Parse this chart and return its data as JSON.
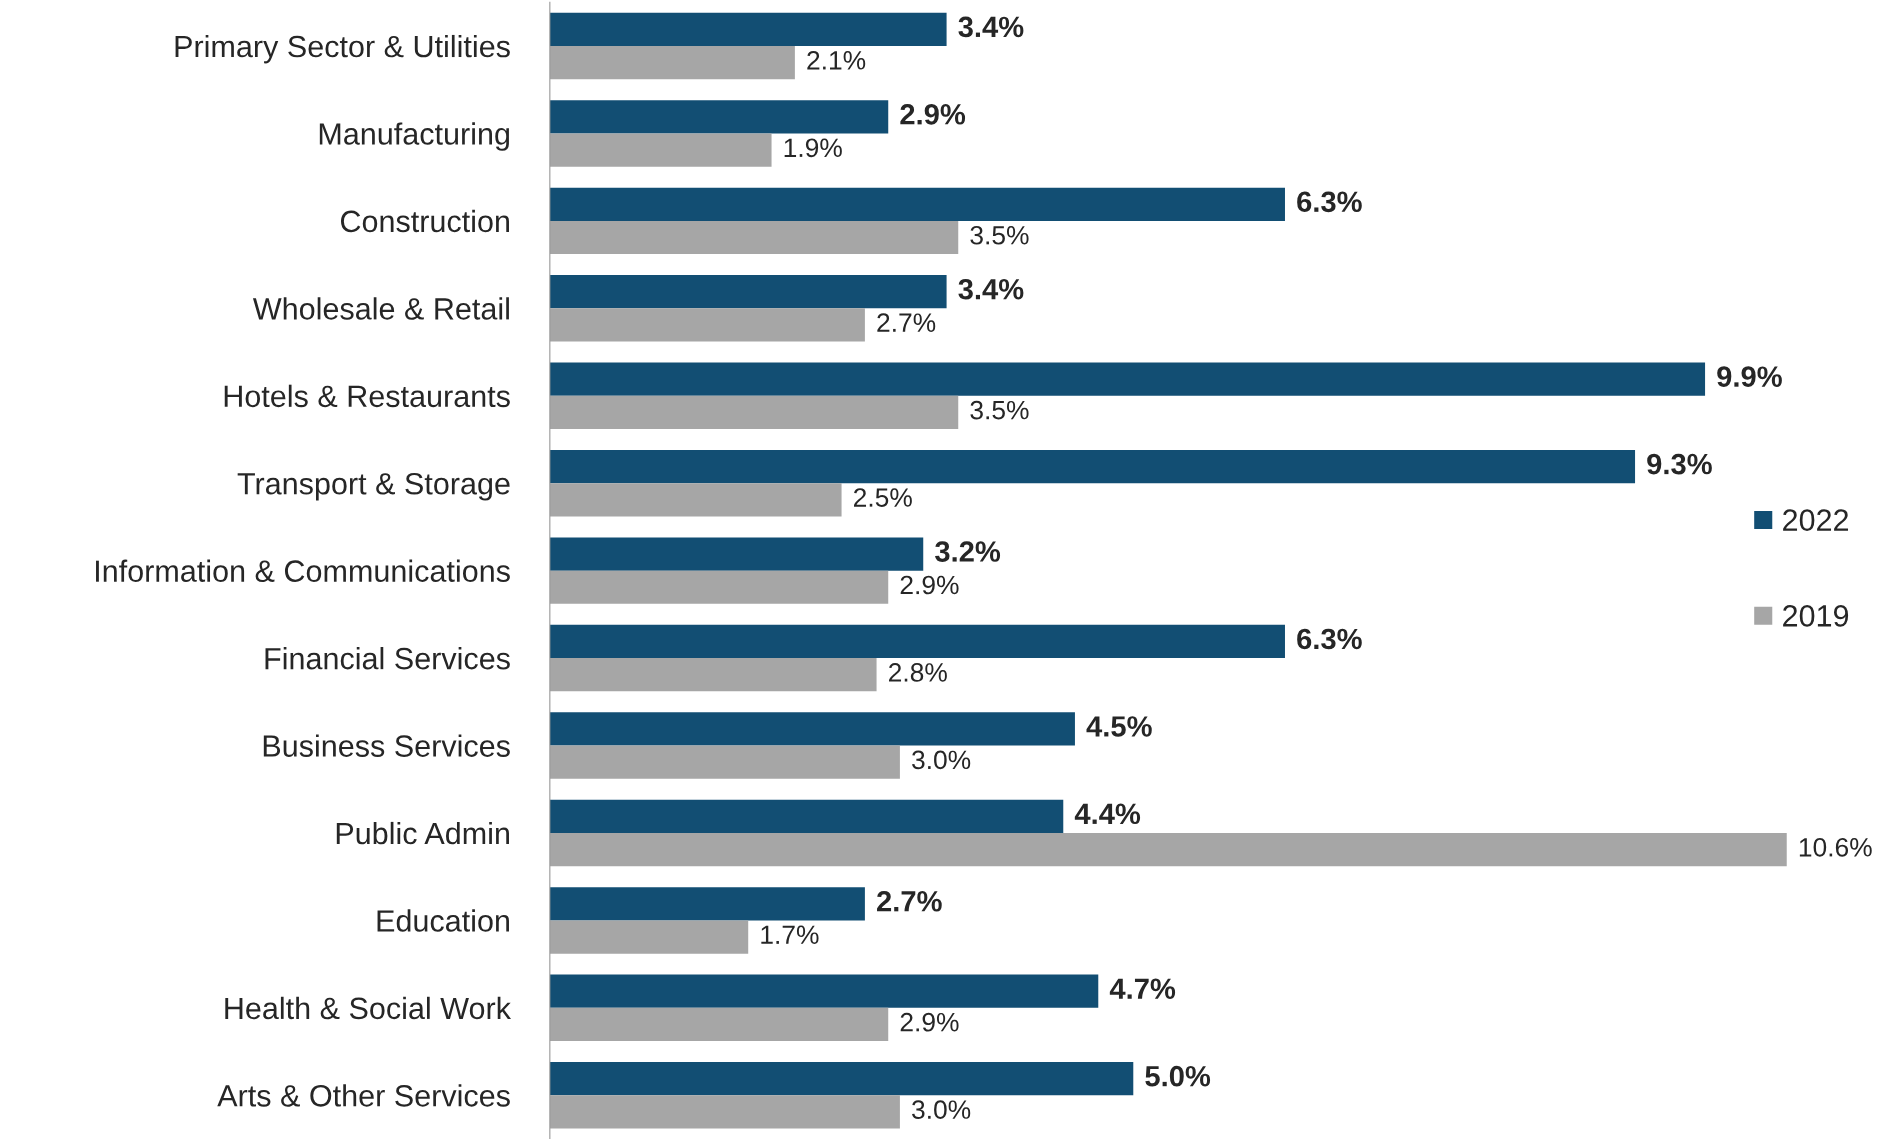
{
  "chart_data": {
    "type": "bar",
    "orientation": "horizontal",
    "relative": false,
    "categories": [
      "Primary Sector & Utilities",
      "Manufacturing",
      "Construction",
      "Wholesale & Retail",
      "Hotels & Restaurants",
      "Transport & Storage",
      "Information & Communications",
      "Financial Services",
      "Business Services",
      "Public Admin",
      "Education",
      "Health & Social Work",
      "Arts & Other Services"
    ],
    "series": [
      {
        "name": "2022",
        "color": "#124e73",
        "values": [
          3.4,
          2.9,
          6.3,
          3.4,
          9.9,
          9.3,
          3.2,
          6.3,
          4.5,
          4.4,
          2.7,
          4.7,
          5.0
        ],
        "value_labels": [
          "3.4%",
          "2.9%",
          "6.3%",
          "3.4%",
          "9.9%",
          "9.3%",
          "3.2%",
          "6.3%",
          "4.5%",
          "4.4%",
          "2.7%",
          "4.7%",
          "5.0%"
        ]
      },
      {
        "name": "2019",
        "color": "#a6a6a6",
        "values": [
          2.1,
          1.9,
          3.5,
          2.7,
          3.5,
          2.5,
          2.9,
          2.8,
          3.0,
          10.6,
          1.7,
          2.9,
          3.0
        ],
        "value_labels": [
          "2.1%",
          "1.9%",
          "3.5%",
          "2.7%",
          "3.5%",
          "2.5%",
          "2.9%",
          "2.8%",
          "3.0%",
          "10.6%",
          "1.7%",
          "2.9%",
          "3.0%"
        ]
      }
    ],
    "legend": "right",
    "grid": false
  }
}
